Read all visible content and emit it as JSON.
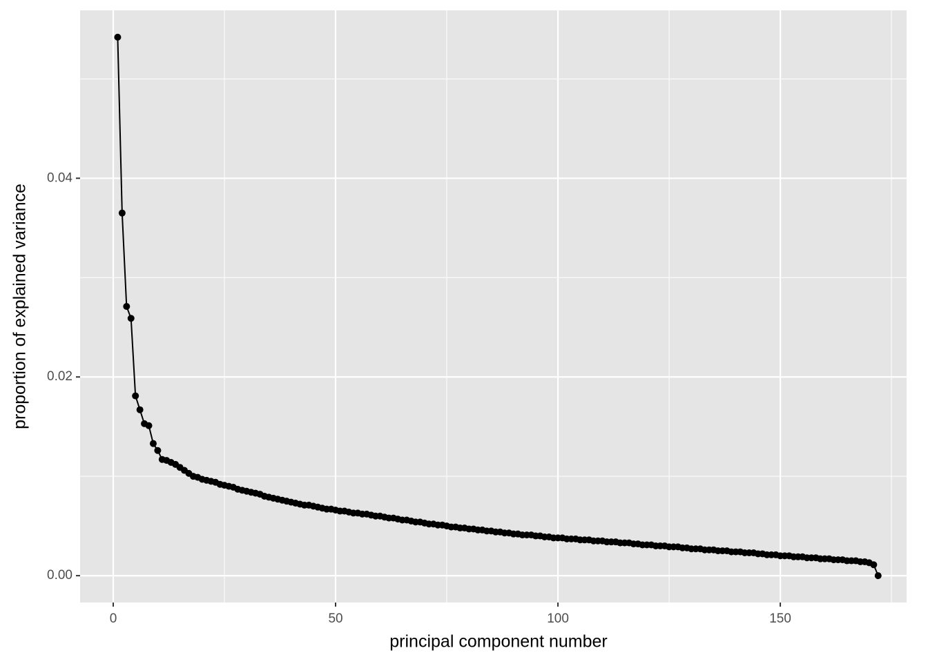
{
  "chart_data": {
    "type": "line",
    "xlabel": "principal component number",
    "ylabel": "proportion of explained variance",
    "x": [
      1,
      2,
      3,
      4,
      5,
      6,
      7,
      8,
      9,
      10,
      11,
      12,
      13,
      14,
      15,
      16,
      17,
      18,
      19,
      20,
      21,
      22,
      23,
      24,
      25,
      26,
      27,
      28,
      29,
      30,
      31,
      32,
      33,
      34,
      35,
      36,
      37,
      38,
      39,
      40,
      41,
      42,
      43,
      44,
      45,
      46,
      47,
      48,
      49,
      50,
      51,
      52,
      53,
      54,
      55,
      56,
      57,
      58,
      59,
      60,
      61,
      62,
      63,
      64,
      65,
      66,
      67,
      68,
      69,
      70,
      71,
      72,
      73,
      74,
      75,
      76,
      77,
      78,
      79,
      80,
      81,
      82,
      83,
      84,
      85,
      86,
      87,
      88,
      89,
      90,
      91,
      92,
      93,
      94,
      95,
      96,
      97,
      98,
      99,
      100,
      101,
      102,
      103,
      104,
      105,
      106,
      107,
      108,
      109,
      110,
      111,
      112,
      113,
      114,
      115,
      116,
      117,
      118,
      119,
      120,
      121,
      122,
      123,
      124,
      125,
      126,
      127,
      128,
      129,
      130,
      131,
      132,
      133,
      134,
      135,
      136,
      137,
      138,
      139,
      140,
      141,
      142,
      143,
      144,
      145,
      146,
      147,
      148,
      149,
      150,
      151,
      152,
      153,
      154,
      155,
      156,
      157,
      158,
      159,
      160,
      161,
      162,
      163,
      164,
      165,
      166,
      167,
      168,
      169,
      170,
      171,
      172
    ],
    "series": [
      {
        "color": "#000000",
        "values": [
          0.0542,
          0.0365,
          0.0271,
          0.0259,
          0.0181,
          0.0167,
          0.0153,
          0.0151,
          0.0133,
          0.0126,
          0.0117,
          0.0116,
          0.0114,
          0.0112,
          0.0109,
          0.0106,
          0.0103,
          0.01,
          0.0099,
          0.0097,
          0.0096,
          0.0095,
          0.0094,
          0.0092,
          0.0091,
          0.009,
          0.0089,
          0.0087,
          0.0086,
          0.0085,
          0.0084,
          0.0083,
          0.0082,
          0.008,
          0.0079,
          0.0078,
          0.0077,
          0.0076,
          0.0075,
          0.0074,
          0.0073,
          0.0072,
          0.0071,
          0.0071,
          0.007,
          0.0069,
          0.0068,
          0.0067,
          0.0067,
          0.0066,
          0.0065,
          0.0065,
          0.0064,
          0.0063,
          0.0063,
          0.0062,
          0.0062,
          0.0061,
          0.006,
          0.006,
          0.0059,
          0.0058,
          0.0058,
          0.0057,
          0.0056,
          0.0056,
          0.0055,
          0.0054,
          0.0054,
          0.0053,
          0.0052,
          0.0052,
          0.0051,
          0.0051,
          0.005,
          0.0049,
          0.0049,
          0.0048,
          0.0048,
          0.0047,
          0.0047,
          0.0046,
          0.0046,
          0.0045,
          0.0045,
          0.0044,
          0.0044,
          0.0043,
          0.0043,
          0.0042,
          0.0042,
          0.0041,
          0.0041,
          0.0041,
          0.004,
          0.004,
          0.0039,
          0.0039,
          0.0038,
          0.0038,
          0.0038,
          0.0037,
          0.0037,
          0.0037,
          0.0036,
          0.0036,
          0.0036,
          0.0035,
          0.0035,
          0.0035,
          0.0034,
          0.0034,
          0.0034,
          0.0033,
          0.0033,
          0.0033,
          0.0032,
          0.0032,
          0.0031,
          0.0031,
          0.0031,
          0.003,
          0.003,
          0.003,
          0.0029,
          0.0029,
          0.0029,
          0.0028,
          0.0028,
          0.0027,
          0.0027,
          0.0027,
          0.0026,
          0.0026,
          0.0026,
          0.0025,
          0.0025,
          0.0025,
          0.0024,
          0.0024,
          0.0024,
          0.0023,
          0.0023,
          0.0023,
          0.0022,
          0.0022,
          0.0021,
          0.0021,
          0.0021,
          0.002,
          0.002,
          0.002,
          0.0019,
          0.0019,
          0.0019,
          0.0018,
          0.0018,
          0.0018,
          0.0017,
          0.0017,
          0.0017,
          0.0016,
          0.0016,
          0.0016,
          0.0015,
          0.0015,
          0.0015,
          0.0014,
          0.0014,
          0.0013,
          0.0011,
          0
        ]
      }
    ],
    "xlim": [
      -7.45,
      178.4
    ],
    "ylim": [
      -0.0027,
      0.0569
    ],
    "xticks": [
      0,
      50,
      100,
      150
    ],
    "yticks": [
      {
        "value": 0,
        "label": "0.00"
      },
      0.02,
      0.04
    ],
    "xminor": [
      25,
      75,
      125,
      175
    ],
    "yminor": [
      0.01,
      0.03,
      0.05
    ],
    "grid": true,
    "panel_color": "#e5e5e5",
    "grid_color": "#ffffff"
  }
}
